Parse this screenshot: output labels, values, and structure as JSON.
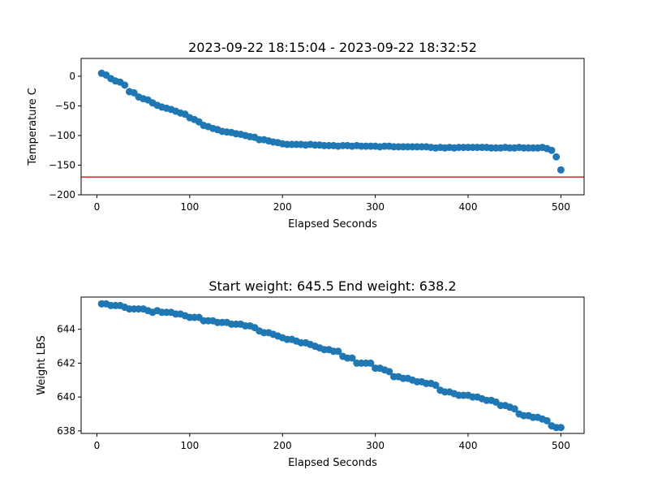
{
  "charts": [
    {
      "type": "scatter",
      "title": "2023-09-22 18:15:04 - 2023-09-22 18:32:52",
      "xlabel": "Elapsed Seconds",
      "ylabel": "Temperature C",
      "xlim": [
        -17,
        525
      ],
      "ylim": [
        -200,
        30
      ],
      "xticks": [
        0,
        100,
        200,
        300,
        400,
        500
      ],
      "yticks": [
        0,
        -50,
        -100,
        -150,
        -200
      ],
      "marker_color": "#1f77b4",
      "hline": {
        "y": -170,
        "color": "#d62728"
      },
      "x": [
        5,
        10,
        15,
        20,
        25,
        30,
        35,
        40,
        45,
        50,
        55,
        60,
        65,
        70,
        75,
        80,
        85,
        90,
        95,
        100,
        105,
        110,
        115,
        120,
        125,
        130,
        135,
        140,
        145,
        150,
        155,
        160,
        165,
        170,
        175,
        180,
        185,
        190,
        195,
        200,
        205,
        210,
        215,
        220,
        225,
        230,
        235,
        240,
        245,
        250,
        255,
        260,
        265,
        270,
        275,
        280,
        285,
        290,
        295,
        300,
        305,
        310,
        315,
        320,
        325,
        330,
        335,
        340,
        345,
        350,
        355,
        360,
        365,
        370,
        375,
        380,
        385,
        390,
        395,
        400,
        405,
        410,
        415,
        420,
        425,
        430,
        435,
        440,
        445,
        450,
        455,
        460,
        465,
        470,
        475,
        480,
        485,
        490,
        495,
        500
      ],
      "y": [
        5,
        2,
        -4,
        -8,
        -10,
        -15,
        -26,
        -28,
        -35,
        -38,
        -40,
        -45,
        -49,
        -52,
        -54,
        -56,
        -59,
        -62,
        -64,
        -70,
        -73,
        -77,
        -83,
        -85,
        -88,
        -90,
        -93,
        -94,
        -95,
        -97,
        -98,
        -100,
        -102,
        -103,
        -107,
        -107,
        -109,
        -111,
        -112,
        -114,
        -115,
        -115,
        -115,
        -115,
        -116,
        -115,
        -116,
        -116,
        -117,
        -117,
        -117,
        -118,
        -117,
        -117,
        -118,
        -117,
        -118,
        -118,
        -118,
        -118,
        -119,
        -118,
        -118,
        -119,
        -119,
        -119,
        -119,
        -119,
        -119,
        -119,
        -119,
        -120,
        -121,
        -120,
        -121,
        -120,
        -121,
        -120,
        -120,
        -120,
        -120,
        -120,
        -120,
        -120,
        -121,
        -121,
        -121,
        -120,
        -121,
        -121,
        -120,
        -121,
        -121,
        -121,
        -121,
        -120,
        -122,
        -125,
        -136,
        -158
      ]
    },
    {
      "type": "scatter",
      "title": "Start weight: 645.5 End weight: 638.2",
      "xlabel": "Elapsed Seconds",
      "ylabel": "Weight LBS",
      "xlim": [
        -17,
        525
      ],
      "ylim": [
        637.85,
        645.9
      ],
      "xticks": [
        0,
        100,
        200,
        300,
        400,
        500
      ],
      "yticks": [
        638,
        640,
        642,
        644
      ],
      "marker_color": "#1f77b4",
      "x": [
        5,
        10,
        15,
        20,
        25,
        30,
        35,
        40,
        45,
        50,
        55,
        60,
        65,
        70,
        75,
        80,
        85,
        90,
        95,
        100,
        105,
        110,
        115,
        120,
        125,
        130,
        135,
        140,
        145,
        150,
        155,
        160,
        165,
        170,
        175,
        180,
        185,
        190,
        195,
        200,
        205,
        210,
        215,
        220,
        225,
        230,
        235,
        240,
        245,
        250,
        255,
        260,
        265,
        270,
        275,
        280,
        285,
        290,
        295,
        300,
        305,
        310,
        315,
        320,
        325,
        330,
        335,
        340,
        345,
        350,
        355,
        360,
        365,
        370,
        375,
        380,
        385,
        390,
        395,
        400,
        405,
        410,
        415,
        420,
        425,
        430,
        435,
        440,
        445,
        450,
        455,
        460,
        465,
        470,
        475,
        480,
        485,
        490,
        495,
        500
      ],
      "y": [
        645.5,
        645.5,
        645.4,
        645.4,
        645.4,
        645.3,
        645.2,
        645.2,
        645.2,
        645.2,
        645.1,
        645.0,
        645.1,
        645.0,
        645.0,
        645.0,
        644.9,
        644.9,
        644.8,
        644.7,
        644.7,
        644.7,
        644.5,
        644.5,
        644.5,
        644.4,
        644.4,
        644.4,
        644.3,
        644.3,
        644.3,
        644.2,
        644.2,
        644.1,
        643.9,
        643.8,
        643.8,
        643.7,
        643.6,
        643.5,
        643.4,
        643.4,
        643.3,
        643.2,
        643.2,
        643.1,
        643.0,
        642.9,
        642.8,
        642.8,
        642.7,
        642.7,
        642.4,
        642.3,
        642.3,
        642.0,
        642.0,
        642.0,
        642.0,
        641.7,
        641.7,
        641.6,
        641.5,
        641.2,
        641.2,
        641.1,
        641.1,
        641.0,
        640.9,
        640.9,
        640.8,
        640.8,
        640.7,
        640.4,
        640.3,
        640.3,
        640.2,
        640.1,
        640.1,
        640.1,
        640.0,
        640.0,
        639.9,
        639.8,
        639.8,
        639.7,
        639.5,
        639.5,
        639.4,
        639.3,
        639.0,
        638.9,
        638.9,
        638.8,
        638.8,
        638.7,
        638.6,
        638.3,
        638.2,
        638.2
      ]
    }
  ]
}
